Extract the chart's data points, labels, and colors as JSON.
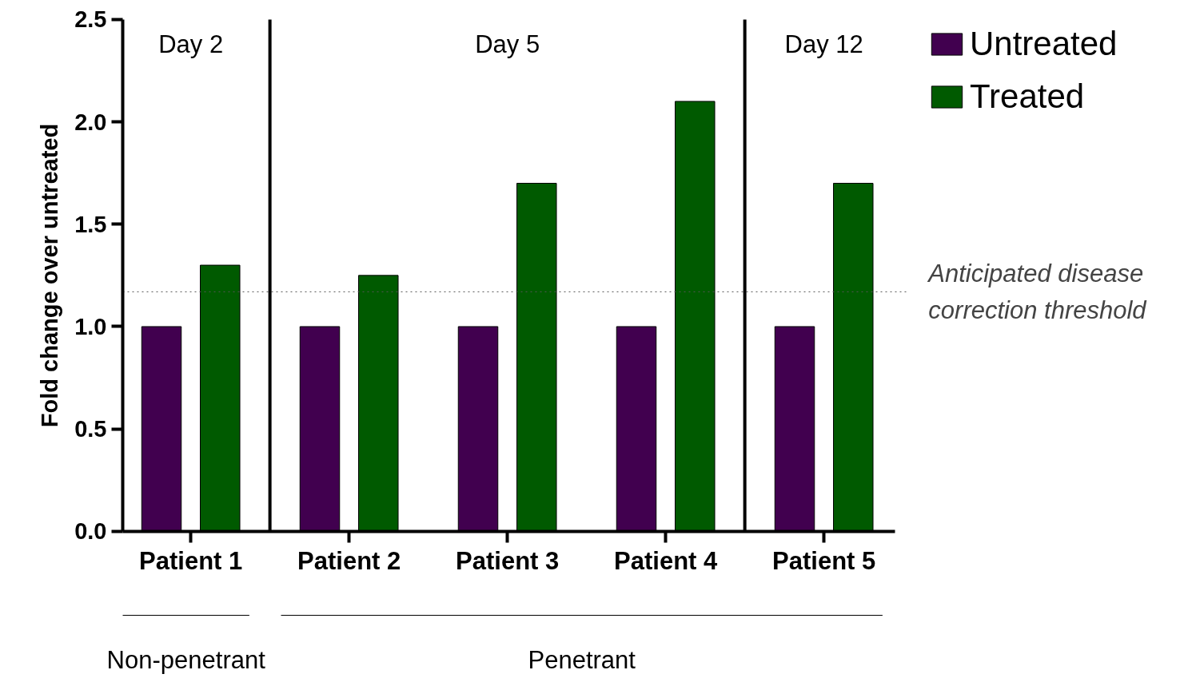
{
  "chart_data": {
    "type": "bar",
    "ylabel": "Fold change over untreated",
    "categories": [
      "Patient 1",
      "Patient 2",
      "Patient 3",
      "Patient 4",
      "Patient 5"
    ],
    "series": [
      {
        "name": "Untreated",
        "color": "#41004f",
        "values": [
          1.0,
          1.0,
          1.0,
          1.0,
          1.0
        ]
      },
      {
        "name": "Treated",
        "color": "#005a00",
        "values": [
          1.3,
          1.25,
          1.7,
          2.1,
          1.7
        ]
      }
    ],
    "ylim": [
      0,
      2.5
    ],
    "yticks": [
      {
        "value": 0,
        "label": "0.0"
      },
      {
        "value": 0.5,
        "label": "0.5"
      },
      {
        "value": 1,
        "label": "1.0"
      },
      {
        "value": 1.5,
        "label": "1.5"
      },
      {
        "value": 2,
        "label": "2.0"
      },
      {
        "value": 2.5,
        "label": "2.5"
      }
    ],
    "ref_lines": [
      {
        "axis": "y",
        "value": 1.17,
        "label": "Anticipated disease\ncorrection threshold",
        "line_style": "dotted",
        "color": "#555555"
      }
    ],
    "annotations": [
      "Day 2",
      "Day 5",
      "Day 12",
      "Non-penetrant",
      "Penetrant"
    ],
    "grid": false,
    "legend": "top right"
  }
}
